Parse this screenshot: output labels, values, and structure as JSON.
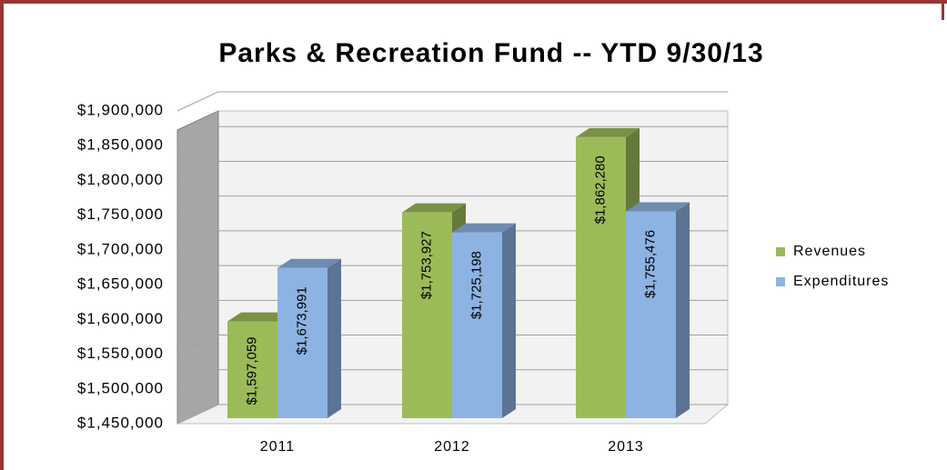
{
  "chart_data": {
    "type": "bar3d",
    "title": "Parks & Recreation Fund -- YTD 9/30/13",
    "categories": [
      "2011",
      "2012",
      "2013"
    ],
    "series": [
      {
        "name": "Revenues",
        "color": "#9bbb59",
        "values": [
          1597059,
          1753927,
          1862280
        ],
        "value_labels": [
          "$1,597,059",
          "$1,753,927",
          "$1,862,280"
        ]
      },
      {
        "name": "Expenditures",
        "color": "#8db3e2",
        "values": [
          1673991,
          1725198,
          1755476
        ],
        "value_labels": [
          "$1,673,991",
          "$1,725,198",
          "$1,755,476"
        ]
      }
    ],
    "ylim": [
      1450000,
      1900000
    ],
    "yticks": [
      {
        "value": 1450000,
        "label": "$1,450,000"
      },
      {
        "value": 1500000,
        "label": "$1,500,000"
      },
      {
        "value": 1550000,
        "label": "$1,550,000"
      },
      {
        "value": 1600000,
        "label": "$1,600,000"
      },
      {
        "value": 1650000,
        "label": "$1,650,000"
      },
      {
        "value": 1700000,
        "label": "$1,700,000"
      },
      {
        "value": 1750000,
        "label": "$1,750,000"
      },
      {
        "value": 1800000,
        "label": "$1,800,000"
      },
      {
        "value": 1850000,
        "label": "$1,850,000"
      },
      {
        "value": 1900000,
        "label": "$1,900,000"
      }
    ],
    "grid": true,
    "legend": "right"
  }
}
